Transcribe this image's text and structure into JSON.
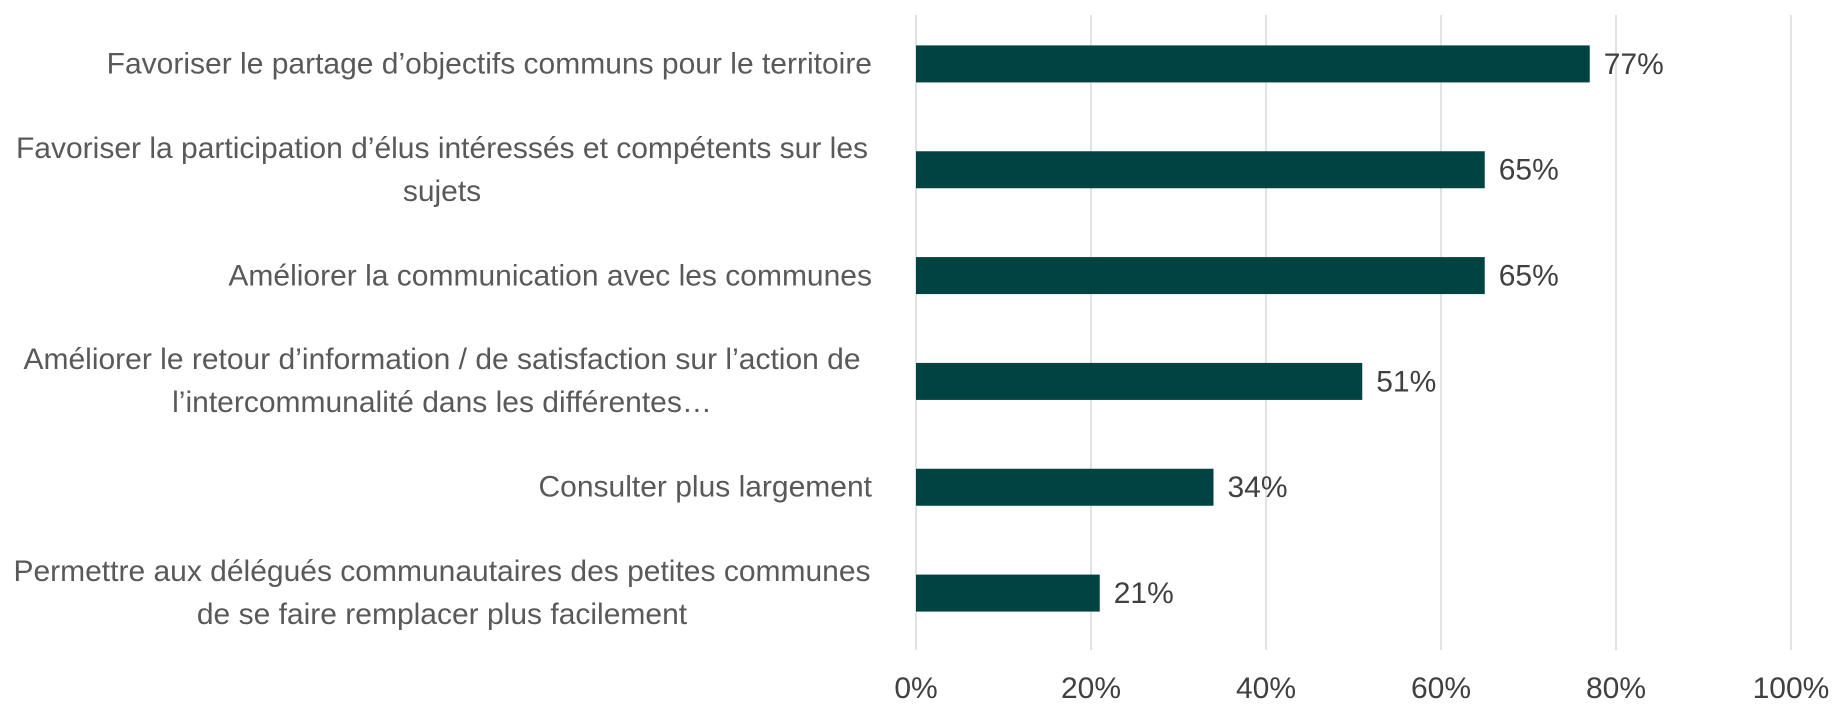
{
  "chart_data": {
    "type": "bar",
    "orientation": "horizontal",
    "categories": [
      "Favoriser le partage d’objectifs communs pour le territoire",
      "Favoriser la participation d’élus intéressés et compétents sur les sujets",
      "Améliorer la communication avec les communes",
      "Améliorer le retour d’information / de satisfaction sur l’action de l’intercommunalité dans les différentes…",
      "Consulter plus largement",
      "Permettre aux délégués communautaires des petites communes de se faire remplacer plus facilement"
    ],
    "values": [
      77,
      65,
      65,
      51,
      34,
      21
    ],
    "value_labels": [
      "77%",
      "65%",
      "65%",
      "51%",
      "34%",
      "21%"
    ],
    "color": "#004343",
    "xlim": [
      0,
      100
    ],
    "xticks": [
      {
        "value": 0,
        "label": "0%"
      },
      {
        "value": 20,
        "label": "20%"
      },
      {
        "value": 40,
        "label": "40%"
      },
      {
        "value": 60,
        "label": "60%"
      },
      {
        "value": 80,
        "label": "80%"
      },
      {
        "value": 100,
        "label": "100%"
      }
    ],
    "grid": true
  }
}
